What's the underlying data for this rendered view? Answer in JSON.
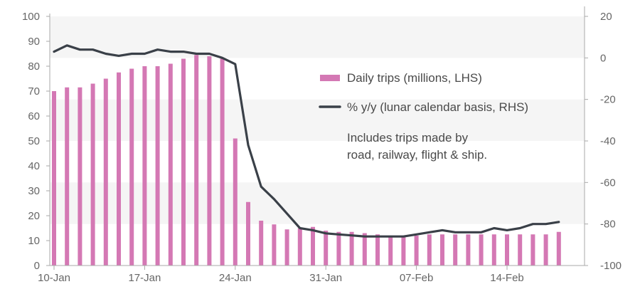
{
  "chart_data": {
    "type": "bar+line",
    "x_tick_labels": [
      "10-Jan",
      "17-Jan",
      "24-Jan",
      "31-Jan",
      "07-Feb",
      "14-Feb"
    ],
    "left_axis": {
      "range": [
        0,
        100
      ],
      "ticks": [
        "0",
        "10",
        "20",
        "30",
        "40",
        "50",
        "60",
        "70",
        "80",
        "90",
        "100"
      ]
    },
    "right_axis": {
      "range": [
        -100,
        20
      ],
      "ticks": [
        "-100",
        "-80",
        "-60",
        "-40",
        "-20",
        "0",
        "20"
      ]
    },
    "dates": [
      "10-Jan",
      "11-Jan",
      "12-Jan",
      "13-Jan",
      "14-Jan",
      "15-Jan",
      "16-Jan",
      "17-Jan",
      "18-Jan",
      "19-Jan",
      "20-Jan",
      "21-Jan",
      "22-Jan",
      "23-Jan",
      "24-Jan",
      "25-Jan",
      "26-Jan",
      "27-Jan",
      "28-Jan",
      "29-Jan",
      "30-Jan",
      "31-Jan",
      "01-Feb",
      "02-Feb",
      "03-Feb",
      "04-Feb",
      "05-Feb",
      "06-Feb",
      "07-Feb",
      "08-Feb",
      "09-Feb",
      "10-Feb",
      "11-Feb",
      "12-Feb",
      "13-Feb",
      "14-Feb",
      "15-Feb",
      "16-Feb",
      "17-Feb",
      "18-Feb"
    ],
    "series": [
      {
        "name": "Daily trips (millions, LHS)",
        "type": "bar",
        "axis": "left",
        "color": "#d478b4",
        "values": [
          70,
          71.5,
          71.5,
          73,
          75,
          77.5,
          79,
          80,
          80,
          81,
          83,
          84.5,
          84,
          83,
          51,
          25.5,
          18,
          16.5,
          14.5,
          15,
          15.5,
          14,
          13.5,
          13.5,
          13,
          12.5,
          12,
          12,
          12,
          12.5,
          12.5,
          12.5,
          12.5,
          12.5,
          12.5,
          12.5,
          12.5,
          12.5,
          12.5,
          13.5
        ]
      },
      {
        "name": "% y/y (lunar calendar basis, RHS)",
        "type": "line",
        "axis": "right",
        "color": "#3a4048",
        "values": [
          3,
          6,
          4,
          4,
          2,
          1,
          2,
          2,
          4,
          3,
          3,
          2,
          2,
          0,
          -3,
          -42,
          -62,
          -68,
          -75,
          -82,
          -83,
          -84.5,
          -85,
          -85.5,
          -86,
          -86,
          -86,
          -86,
          -85,
          -84,
          -83,
          -84,
          -84,
          -84,
          -82,
          -83,
          -82,
          -80,
          -80,
          -79
        ]
      }
    ],
    "annotation": [
      "Includes trips made by",
      "road, railway, flight & ship."
    ],
    "legend_position": "center-right",
    "grid": "horizontal bands"
  }
}
